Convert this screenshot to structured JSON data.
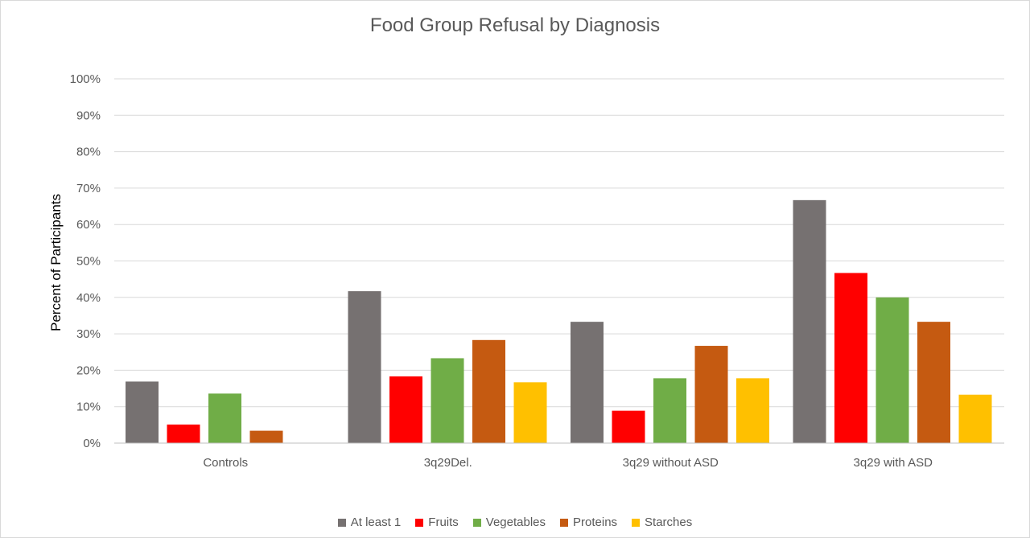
{
  "chart_data": {
    "type": "bar",
    "title": "Food Group Refusal by Diagnosis",
    "xlabel": "",
    "ylabel": "Percent of Participants",
    "ylim": [
      0,
      100
    ],
    "yticks": [
      "0%",
      "10%",
      "20%",
      "30%",
      "40%",
      "50%",
      "60%",
      "70%",
      "80%",
      "90%",
      "100%"
    ],
    "grid": true,
    "legend_position": "bottom",
    "categories": [
      "Controls",
      "3q29Del.",
      "3q29 without ASD",
      "3q29 with ASD"
    ],
    "series": [
      {
        "name": "At least 1",
        "color": "#767171",
        "values": [
          16.9,
          41.7,
          33.3,
          66.7
        ]
      },
      {
        "name": "Fruits",
        "color": "#ff0000",
        "values": [
          5.1,
          18.3,
          8.9,
          46.7
        ]
      },
      {
        "name": "Vegetables",
        "color": "#70ad47",
        "values": [
          13.6,
          23.3,
          17.8,
          40.0
        ]
      },
      {
        "name": "Proteins",
        "color": "#c55a11",
        "values": [
          3.4,
          28.3,
          26.7,
          33.3
        ]
      },
      {
        "name": "Starches",
        "color": "#ffc000",
        "values": [
          0,
          16.7,
          17.8,
          13.3
        ]
      }
    ]
  }
}
